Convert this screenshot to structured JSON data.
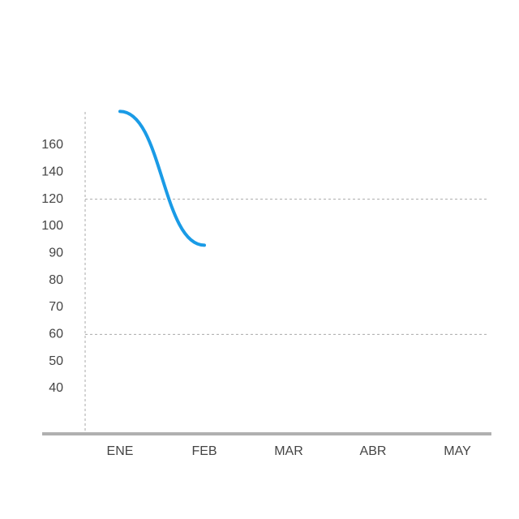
{
  "chart_data": {
    "type": "line",
    "categories": [
      "ENE",
      "FEB",
      "MAR",
      "ABR",
      "MAY"
    ],
    "series": [
      {
        "color": "#1a9be6",
        "values": [
          185,
          93,
          null,
          null,
          null
        ]
      }
    ],
    "yticks": [
      40,
      50,
      60,
      70,
      80,
      90,
      100,
      120,
      140,
      160
    ],
    "grid": [
      60,
      120
    ]
  }
}
